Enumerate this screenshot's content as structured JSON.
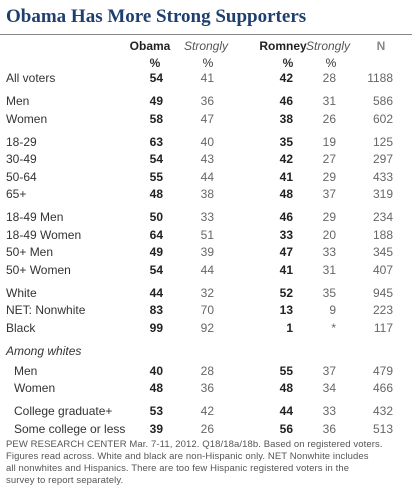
{
  "title": "Obama Has More Strong Supporters",
  "header": {
    "columns": [
      "Obama",
      "Strongly",
      "Romney",
      "Strongly",
      "N"
    ],
    "units": [
      "%",
      "%",
      "%",
      "%"
    ]
  },
  "groups": [
    {
      "rows": [
        [
          "All voters",
          54,
          41,
          42,
          28,
          1188
        ]
      ]
    },
    {
      "rows": [
        [
          "Men",
          49,
          36,
          46,
          31,
          586
        ],
        [
          "Women",
          58,
          47,
          38,
          26,
          602
        ]
      ]
    },
    {
      "rows": [
        [
          "18-29",
          63,
          40,
          35,
          19,
          125
        ],
        [
          "30-49",
          54,
          43,
          42,
          27,
          297
        ],
        [
          "50-64",
          55,
          44,
          41,
          29,
          433
        ],
        [
          "65+",
          48,
          38,
          48,
          37,
          319
        ]
      ]
    },
    {
      "rows": [
        [
          "18-49 Men",
          50,
          33,
          46,
          29,
          234
        ],
        [
          "18-49 Women",
          64,
          51,
          33,
          20,
          188
        ],
        [
          "50+ Men",
          49,
          39,
          47,
          33,
          345
        ],
        [
          "50+ Women",
          54,
          44,
          41,
          31,
          407
        ]
      ]
    },
    {
      "rows": [
        [
          "White",
          44,
          32,
          52,
          35,
          945
        ],
        [
          "NET: Nonwhite",
          83,
          70,
          13,
          9,
          223
        ],
        [
          "Black",
          99,
          92,
          1,
          "*",
          117
        ]
      ]
    },
    {
      "heading": "Among whites",
      "rows": [
        [
          "Men",
          40,
          28,
          55,
          37,
          479
        ],
        [
          "Women",
          48,
          36,
          48,
          34,
          466
        ]
      ]
    },
    {
      "rows": [
        [
          "College graduate+",
          53,
          42,
          44,
          33,
          432
        ],
        [
          "Some college or less",
          39,
          26,
          56,
          36,
          513
        ]
      ]
    }
  ],
  "footer": {
    "lines": [
      "PEW RESEARCH CENTER Mar. 7-11, 2012. Q18/18a/18b. Based on registered voters.",
      "Figures read across. White and black are non-Hispanic only. NET Nonwhite includes",
      "all nonwhites and Hispanics. There are too few Hispanic registered voters in the",
      "survey to report separately."
    ]
  }
}
